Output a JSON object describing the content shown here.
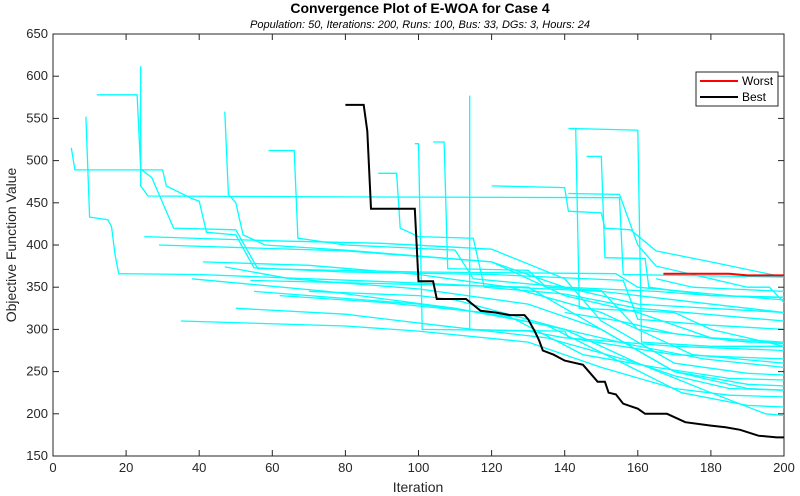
{
  "chart_data": {
    "type": "line",
    "title": "Convergence Plot of E-WOA for Case 4",
    "subtitle": "Population: 50, Iterations: 200, Runs: 100, Bus: 33, DGs: 3, Hours: 24",
    "xlabel": "Iteration",
    "ylabel": "Objective Function Value",
    "xlim": [
      0,
      200
    ],
    "ylim": [
      150,
      650
    ],
    "xticks": [
      0,
      20,
      40,
      60,
      80,
      100,
      120,
      140,
      160,
      180,
      200
    ],
    "yticks": [
      150,
      200,
      250,
      300,
      350,
      400,
      450,
      500,
      550,
      600,
      650
    ],
    "grid": false,
    "legend": {
      "placement": "top-right",
      "entries": [
        "Worst",
        "Best"
      ]
    },
    "colors": {
      "runs": "#00ffff",
      "worst": "#ff0000",
      "best": "#000000"
    },
    "series": [
      {
        "name": "Worst",
        "color": "#ff0000",
        "points": [
          [
            167,
            366
          ],
          [
            185,
            366
          ],
          [
            190,
            364
          ],
          [
            200,
            364
          ]
        ]
      },
      {
        "name": "Best",
        "color": "#000000",
        "points": [
          [
            80,
            566
          ],
          [
            85,
            566
          ],
          [
            86,
            535
          ],
          [
            87,
            443
          ],
          [
            99,
            443
          ],
          [
            100,
            357
          ],
          [
            104,
            357
          ],
          [
            105,
            336
          ],
          [
            113,
            336
          ],
          [
            117,
            322
          ],
          [
            121,
            320
          ],
          [
            125,
            317
          ],
          [
            129,
            317
          ],
          [
            130,
            312
          ],
          [
            132,
            296
          ],
          [
            133,
            287
          ],
          [
            134,
            275
          ],
          [
            137,
            270
          ],
          [
            140,
            263
          ],
          [
            145,
            258
          ],
          [
            149,
            238
          ],
          [
            151,
            238
          ],
          [
            152,
            225
          ],
          [
            154,
            223
          ],
          [
            156,
            212
          ],
          [
            160,
            206
          ],
          [
            162,
            200
          ],
          [
            168,
            200
          ],
          [
            173,
            190
          ],
          [
            180,
            186
          ],
          [
            184,
            184
          ],
          [
            188,
            181
          ],
          [
            193,
            174
          ],
          [
            198,
            172
          ],
          [
            200,
            172
          ]
        ]
      }
    ],
    "runs": [
      [
        [
          24,
          612
        ],
        [
          24,
          470
        ],
        [
          26,
          458
        ],
        [
          80,
          457
        ],
        [
          155,
          456
        ],
        [
          156,
          365
        ],
        [
          170,
          364
        ],
        [
          200,
          362
        ]
      ],
      [
        [
          12,
          578
        ],
        [
          23,
          578
        ],
        [
          24,
          490
        ],
        [
          27,
          480
        ],
        [
          33,
          420
        ],
        [
          50,
          418
        ],
        [
          56,
          372
        ],
        [
          100,
          368
        ],
        [
          154,
          366
        ],
        [
          160,
          350
        ],
        [
          185,
          340
        ],
        [
          200,
          335
        ]
      ],
      [
        [
          9,
          552
        ],
        [
          10,
          433
        ],
        [
          15,
          430
        ],
        [
          16,
          422
        ],
        [
          17,
          388
        ],
        [
          18,
          366
        ],
        [
          40,
          365
        ],
        [
          100,
          355
        ],
        [
          150,
          345
        ],
        [
          200,
          320
        ]
      ],
      [
        [
          5,
          515
        ],
        [
          6,
          489
        ],
        [
          30,
          489
        ],
        [
          31,
          470
        ],
        [
          38,
          455
        ],
        [
          40,
          452
        ],
        [
          42,
          415
        ],
        [
          50,
          412
        ],
        [
          55,
          373
        ],
        [
          80,
          368
        ],
        [
          120,
          365
        ],
        [
          156,
          358
        ],
        [
          160,
          312
        ],
        [
          180,
          305
        ],
        [
          200,
          300
        ]
      ],
      [
        [
          47,
          558
        ],
        [
          48,
          460
        ],
        [
          50,
          450
        ],
        [
          52,
          412
        ],
        [
          58,
          400
        ],
        [
          80,
          394
        ],
        [
          120,
          380
        ],
        [
          140,
          350
        ],
        [
          160,
          330
        ],
        [
          200,
          320
        ]
      ],
      [
        [
          59,
          512
        ],
        [
          66,
          512
        ],
        [
          67,
          408
        ],
        [
          80,
          400
        ],
        [
          110,
          394
        ],
        [
          115,
          360
        ],
        [
          140,
          350
        ],
        [
          165,
          345
        ],
        [
          180,
          340
        ],
        [
          200,
          338
        ]
      ],
      [
        [
          89,
          485
        ],
        [
          94,
          485
        ],
        [
          95,
          420
        ],
        [
          100,
          410
        ],
        [
          115,
          408
        ],
        [
          118,
          350
        ],
        [
          140,
          342
        ],
        [
          160,
          325
        ],
        [
          200,
          310
        ]
      ],
      [
        [
          104,
          522
        ],
        [
          107,
          522
        ],
        [
          108,
          372
        ],
        [
          130,
          370
        ],
        [
          135,
          350
        ],
        [
          150,
          346
        ],
        [
          160,
          300
        ],
        [
          190,
          285
        ],
        [
          200,
          285
        ]
      ],
      [
        [
          114,
          577
        ],
        [
          114,
          300
        ],
        [
          130,
          298
        ],
        [
          140,
          290
        ],
        [
          170,
          280
        ],
        [
          200,
          275
        ]
      ],
      [
        [
          120,
          470
        ],
        [
          140,
          468
        ],
        [
          141,
          440
        ],
        [
          150,
          438
        ],
        [
          151,
          420
        ],
        [
          158,
          418
        ],
        [
          165,
          393
        ],
        [
          180,
          380
        ],
        [
          200,
          362
        ]
      ],
      [
        [
          141,
          538
        ],
        [
          143,
          538
        ],
        [
          144,
          325
        ],
        [
          170,
          320
        ],
        [
          180,
          300
        ],
        [
          200,
          280
        ]
      ],
      [
        [
          142,
          538
        ],
        [
          160,
          536
        ],
        [
          161,
          285
        ],
        [
          180,
          280
        ],
        [
          200,
          280
        ]
      ],
      [
        [
          146,
          505
        ],
        [
          150,
          505
        ],
        [
          151,
          385
        ],
        [
          162,
          384
        ],
        [
          163,
          350
        ],
        [
          180,
          340
        ],
        [
          200,
          338
        ]
      ],
      [
        [
          141,
          461
        ],
        [
          155,
          460
        ],
        [
          160,
          400
        ],
        [
          165,
          375
        ],
        [
          180,
          360
        ],
        [
          190,
          350
        ],
        [
          196,
          350
        ],
        [
          200,
          332
        ]
      ],
      [
        [
          99,
          520
        ],
        [
          100,
          520
        ],
        [
          101,
          300
        ],
        [
          140,
          298
        ],
        [
          141,
          290
        ],
        [
          170,
          270
        ],
        [
          200,
          265
        ]
      ],
      [
        [
          54,
          358
        ],
        [
          130,
          350
        ],
        [
          150,
          300
        ],
        [
          170,
          250
        ],
        [
          190,
          235
        ],
        [
          200,
          233
        ]
      ],
      [
        [
          70,
          345
        ],
        [
          100,
          340
        ],
        [
          110,
          335
        ],
        [
          140,
          300
        ],
        [
          160,
          260
        ],
        [
          170,
          245
        ],
        [
          185,
          230
        ],
        [
          200,
          228
        ]
      ],
      [
        [
          25,
          410
        ],
        [
          60,
          405
        ],
        [
          90,
          402
        ],
        [
          120,
          395
        ],
        [
          140,
          360
        ],
        [
          150,
          310
        ],
        [
          170,
          260
        ],
        [
          190,
          248
        ],
        [
          200,
          246
        ]
      ],
      [
        [
          29,
          400
        ],
        [
          80,
          393
        ],
        [
          120,
          380
        ],
        [
          140,
          340
        ],
        [
          160,
          320
        ],
        [
          180,
          290
        ],
        [
          200,
          285
        ]
      ],
      [
        [
          41,
          380
        ],
        [
          70,
          376
        ],
        [
          100,
          365
        ],
        [
          125,
          350
        ],
        [
          150,
          320
        ],
        [
          175,
          270
        ],
        [
          200,
          260
        ]
      ],
      [
        [
          47,
          374
        ],
        [
          65,
          360
        ],
        [
          100,
          348
        ],
        [
          130,
          330
        ],
        [
          150,
          300
        ],
        [
          170,
          250
        ],
        [
          190,
          230
        ],
        [
          200,
          228
        ]
      ],
      [
        [
          35,
          310
        ],
        [
          80,
          304
        ],
        [
          100,
          298
        ],
        [
          130,
          285
        ],
        [
          150,
          255
        ],
        [
          170,
          230
        ],
        [
          185,
          222
        ],
        [
          200,
          220
        ]
      ],
      [
        [
          55,
          345
        ],
        [
          100,
          330
        ],
        [
          125,
          315
        ],
        [
          145,
          270
        ],
        [
          165,
          255
        ],
        [
          185,
          242
        ],
        [
          200,
          240
        ]
      ],
      [
        [
          62,
          340
        ],
        [
          90,
          332
        ],
        [
          118,
          320
        ],
        [
          140,
          300
        ],
        [
          158,
          282
        ],
        [
          178,
          265
        ],
        [
          200,
          255
        ]
      ],
      [
        [
          38,
          360
        ],
        [
          75,
          345
        ],
        [
          110,
          325
        ],
        [
          135,
          305
        ],
        [
          155,
          262
        ],
        [
          172,
          225
        ],
        [
          190,
          210
        ],
        [
          200,
          208
        ]
      ],
      [
        [
          50,
          325
        ],
        [
          80,
          318
        ],
        [
          105,
          305
        ],
        [
          135,
          290
        ],
        [
          160,
          260
        ],
        [
          180,
          225
        ],
        [
          195,
          200
        ],
        [
          200,
          198
        ]
      ],
      [
        [
          165,
          360
        ],
        [
          175,
          350
        ],
        [
          185,
          348
        ],
        [
          200,
          345
        ]
      ],
      [
        [
          140,
          320
        ],
        [
          155,
          310
        ],
        [
          170,
          295
        ],
        [
          185,
          287
        ],
        [
          200,
          283
        ]
      ]
    ]
  }
}
